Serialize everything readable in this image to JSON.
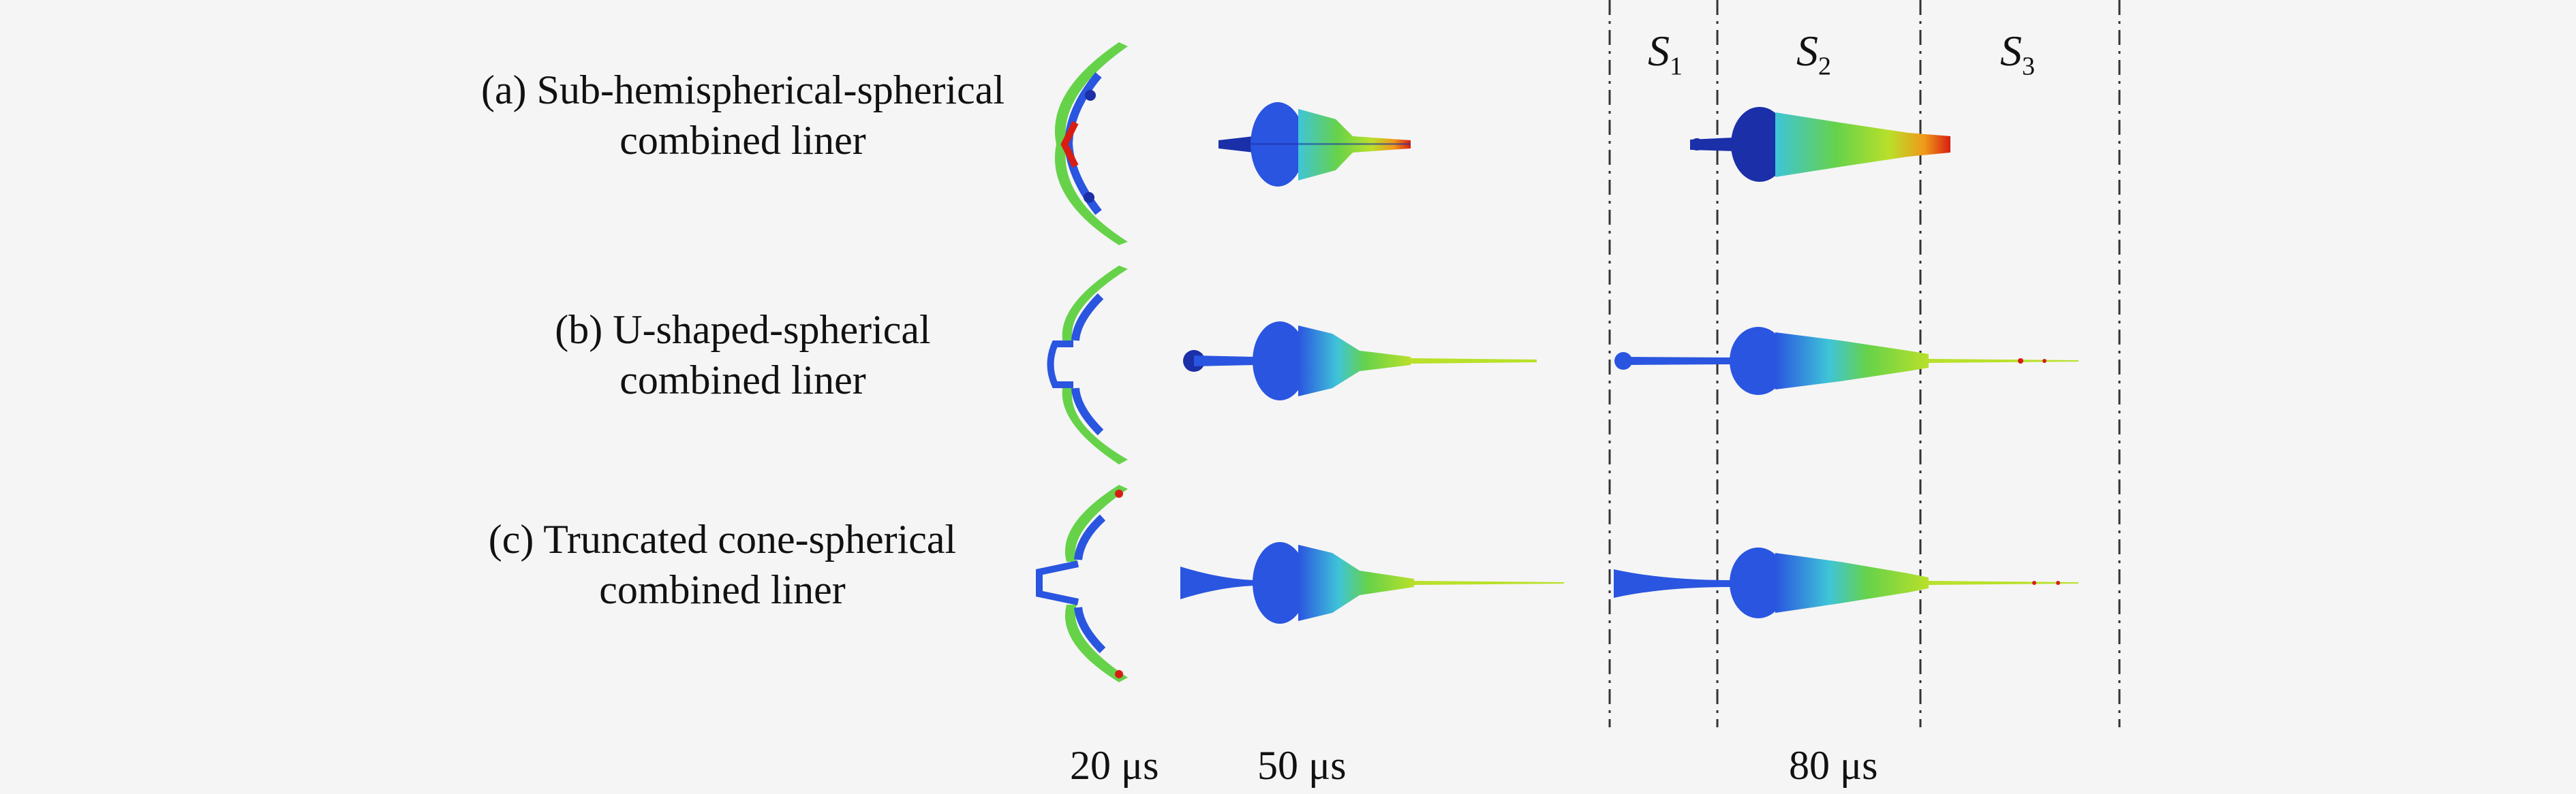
{
  "rows": [
    {
      "id": "a",
      "line1": "(a) Sub-hemispherical-spherical",
      "line2": "combined liner"
    },
    {
      "id": "b",
      "line1": "(b) U-shaped-spherical",
      "line2": "combined liner"
    },
    {
      "id": "c",
      "line1": "(c) Truncated cone-spherical",
      "line2": "combined liner"
    }
  ],
  "times": [
    "20 μs",
    "50 μs",
    "80 μs"
  ],
  "zones": [
    {
      "letter": "S",
      "sub": "1"
    },
    {
      "letter": "S",
      "sub": "2"
    },
    {
      "letter": "S",
      "sub": "3"
    }
  ],
  "colors": {
    "dark_blue": "#1a2fa8",
    "blue": "#2a55e0",
    "cyan": "#3fc4d8",
    "green": "#66d24a",
    "yellow_green": "#b9e02a",
    "orange": "#f09a1a",
    "red": "#d81e12"
  }
}
